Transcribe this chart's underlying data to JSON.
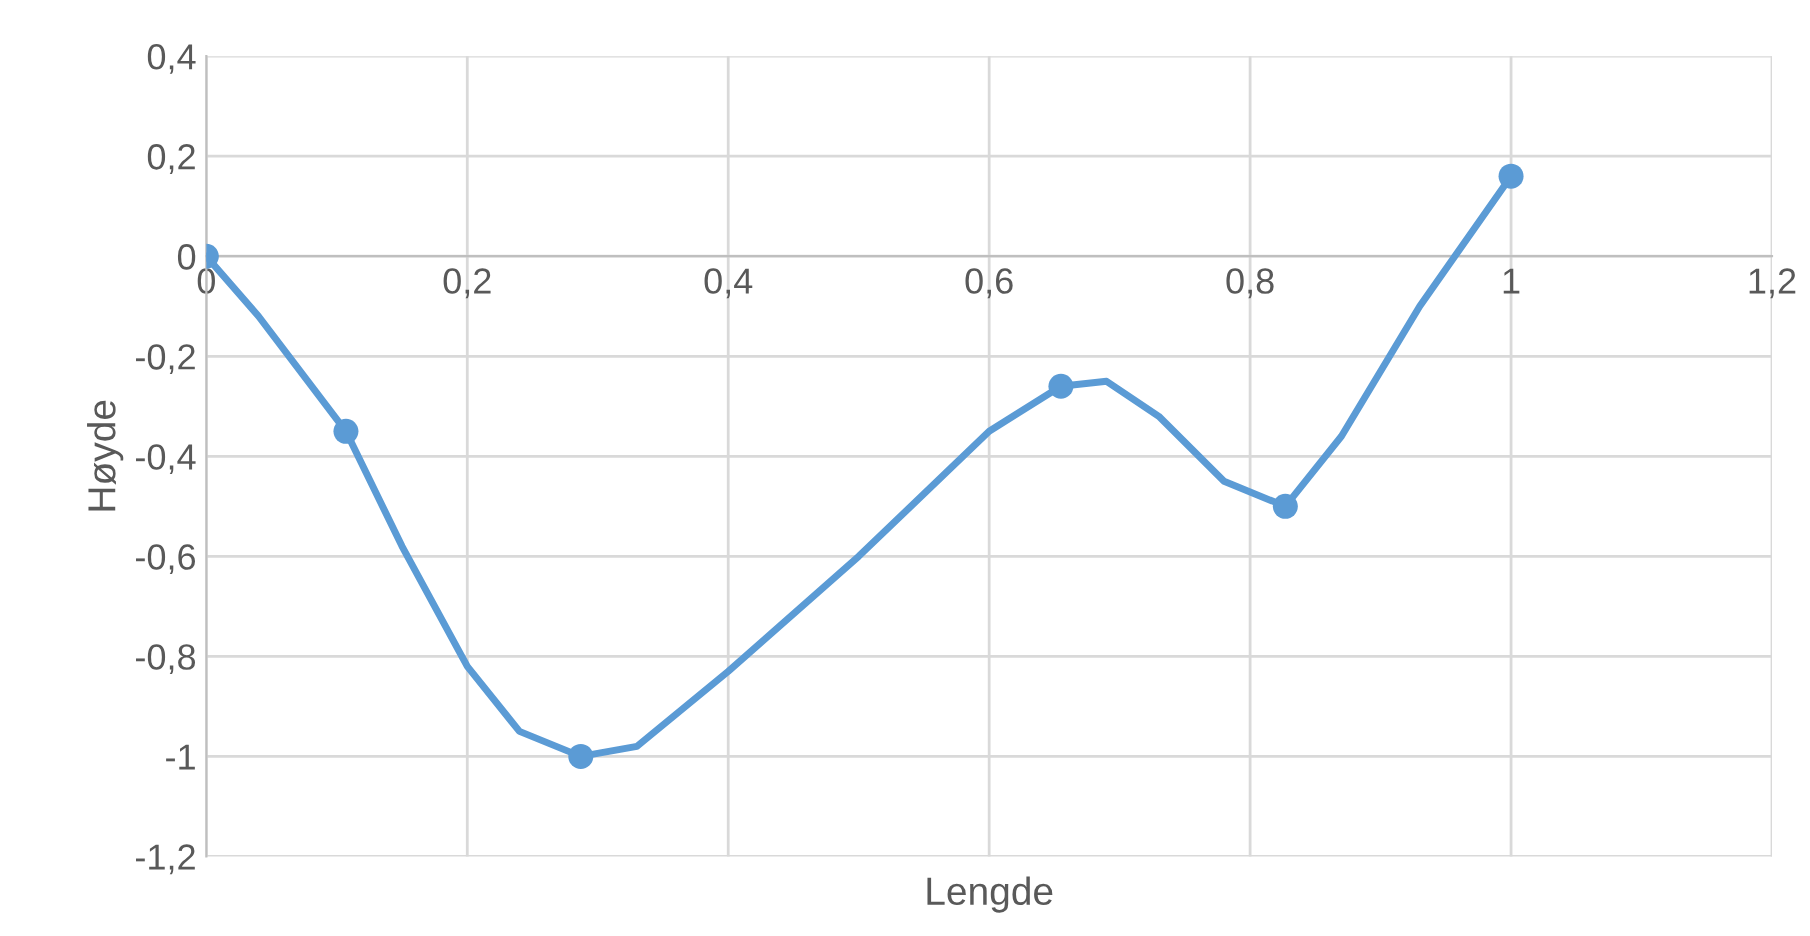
{
  "chart_data": {
    "type": "line",
    "xlabel": "Lengde",
    "ylabel": "Høyde",
    "series": [
      {
        "color": "#5b9bd5",
        "marker": "none",
        "x": [
          0,
          0.04,
          0.107,
          0.15,
          0.2,
          0.24,
          0.287,
          0.33,
          0.4,
          0.5,
          0.6,
          0.655,
          0.69,
          0.73,
          0.78,
          0.827,
          0.87,
          0.93,
          1
        ],
        "values": [
          0,
          -0.12,
          -0.35,
          -0.58,
          -0.82,
          -0.95,
          -1,
          -0.98,
          -0.83,
          -0.6,
          -0.35,
          -0.26,
          -0.25,
          -0.32,
          -0.45,
          -0.5,
          -0.36,
          -0.1,
          0.16
        ]
      },
      {
        "type": "scatter",
        "marker": "circle",
        "color": "#5b9bd5",
        "x": [
          0,
          0.107,
          0.287,
          0.655,
          0.827,
          1
        ],
        "values": [
          0,
          -0.35,
          -1,
          -0.26,
          -0.5,
          0.16
        ]
      }
    ],
    "xlim": [
      0,
      1.2
    ],
    "ylim": [
      -1.2,
      0.4
    ],
    "xticks": [
      {
        "value": 0,
        "label": "0"
      },
      {
        "value": 0.2,
        "label": "0,2"
      },
      {
        "value": 0.4,
        "label": "0,4"
      },
      {
        "value": 0.6,
        "label": "0,6"
      },
      {
        "value": 0.8,
        "label": "0,8"
      },
      {
        "value": 1,
        "label": "1"
      },
      {
        "value": 1.2,
        "label": "1,2"
      }
    ],
    "yticks": [
      {
        "value": -1.2,
        "label": "-1,2"
      },
      {
        "value": -1,
        "label": "-1"
      },
      {
        "value": -0.8,
        "label": "-0,8"
      },
      {
        "value": -0.6,
        "label": "-0,6"
      },
      {
        "value": -0.4,
        "label": "-0,4"
      },
      {
        "value": -0.2,
        "label": "-0,2"
      },
      {
        "value": 0,
        "label": "0"
      },
      {
        "value": 0.2,
        "label": "0,2"
      },
      {
        "value": 0.4,
        "label": "0,4"
      }
    ],
    "grid": true,
    "line_style": "solid"
  }
}
